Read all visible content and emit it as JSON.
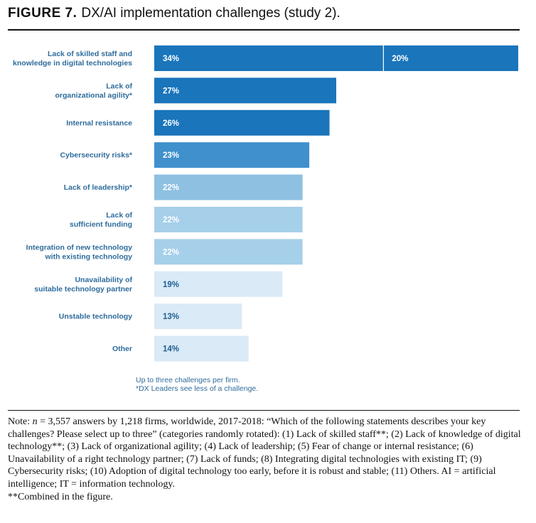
{
  "figure": {
    "number": "FIGURE 7.",
    "title": "DX/AI implementation challenges (study 2)."
  },
  "chart_data": {
    "type": "bar",
    "orientation": "horizontal",
    "categories": [
      [
        "Lack of skilled staff and",
        "knowledge in digital technologies"
      ],
      [
        "Lack of",
        "organizational agility*"
      ],
      [
        "Internal resistance"
      ],
      [
        "Cybersecurity risks*"
      ],
      [
        "Lack of leadership*"
      ],
      [
        "Lack of",
        "sufficient funding"
      ],
      [
        "Integration of new technology",
        "with existing technology"
      ],
      [
        "Unavailability of",
        "suitable technology partner"
      ],
      [
        "Unstable technology"
      ],
      [
        "Other"
      ]
    ],
    "values": [
      34,
      27,
      26,
      23,
      22,
      22,
      22,
      19,
      13,
      14
    ],
    "value_labels": [
      "34%",
      "27%",
      "26%",
      "23%",
      "22%",
      "22%",
      "22%",
      "19%",
      "13%",
      "14%"
    ],
    "stacked_segment": {
      "index": 0,
      "value": 20,
      "label": "20%"
    },
    "bar_colors": [
      "#1a75bb",
      "#1a75bb",
      "#1a75bb",
      "#3f90cc",
      "#8ec0e2",
      "#a6cfea",
      "#a6cfea",
      "#daeaf6",
      "#daeaf6",
      "#daeaf6"
    ],
    "value_label_colors": [
      "#ffffff",
      "#ffffff",
      "#ffffff",
      "#ffffff",
      "#ffffff",
      "#ffffff",
      "#ffffff",
      "#1f5f93",
      "#1f5f93",
      "#1f5f93"
    ],
    "xlim": [
      0,
      54
    ],
    "footnotes": [
      "Up to three challenges per firm.",
      "*DX Leaders see less of a challenge."
    ]
  },
  "note": {
    "prefix": "Note: ",
    "n_symbol": "n",
    "text": " = 3,557 answers by 1,218 firms, worldwide, 2017-2018: “Which of the following statements describes your key challenges? Please select up to three” (categories randomly rotated): (1) Lack of skilled staff**; (2) Lack of knowledge of digital technology**; (3) Lack of organizational agility; (4) Lack of leadership; (5) Fear of change or internal resistance; (6) Unavailability of a right technology partner; (7) Lack of funds; (8) Integrating digital technologies with existing IT; (9) Cybersecurity risks; (10) Adoption of digital technology too early, before it is robust and stable; (11) Others. AI = artificial intelligence; IT = information technology.",
    "footnote": "**Combined in the figure."
  }
}
